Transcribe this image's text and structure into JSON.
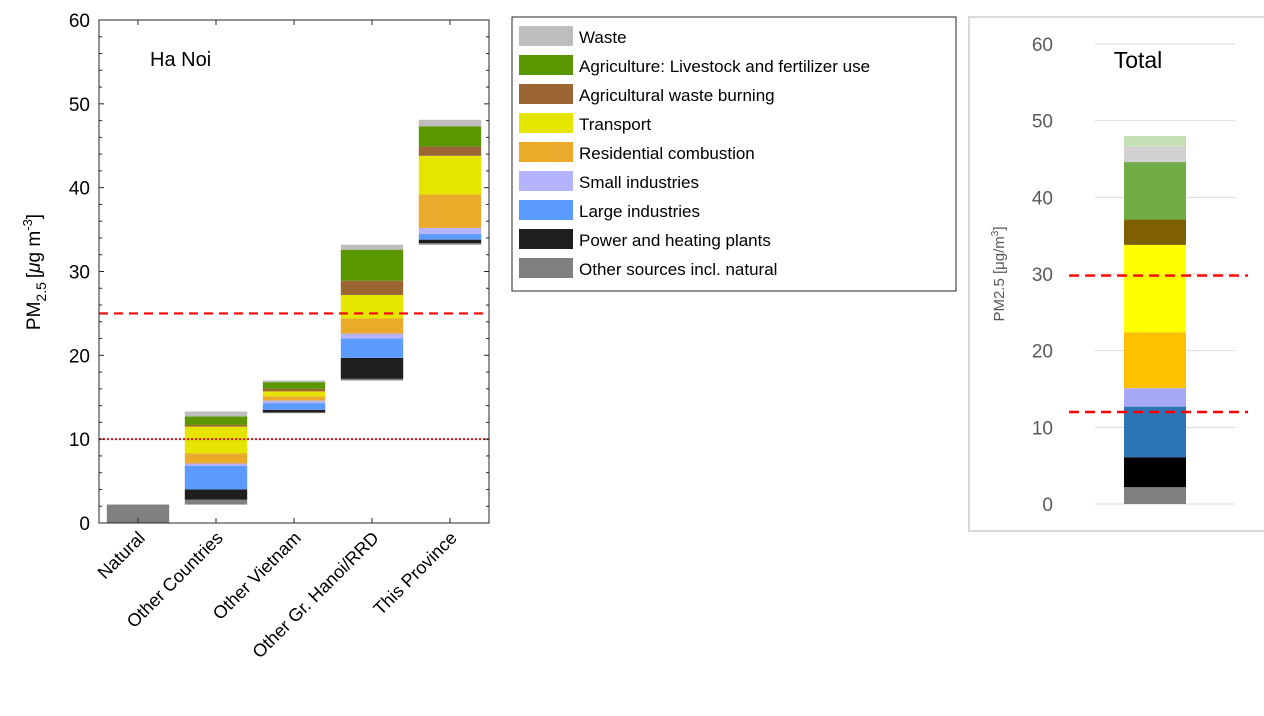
{
  "colors": {
    "Waste": "#bdbdbd",
    "Agriculture: Livestock and fertilizer use": "#5a9600",
    "Agricultural waste burning": "#9c6534",
    "Transport": "#e5e500",
    "Residential combustion": "#eaaa2a",
    "Small industries": "#b3b3ff",
    "Large industries": "#5b9bff",
    "Power and heating plants": "#1e1e1e",
    "Other sources incl. natural": "#808080"
  },
  "colors_right": {
    "Other sources incl. natural": "#7f7f7f",
    "Power and heating plants": "#000000",
    "Large industries": "#2e75b6",
    "Small industries": "#a7a7f7",
    "Residential combustion": "#ffc000",
    "Transport": "#ffff00",
    "Agricultural waste burning": "#7f6000",
    "Agriculture: Livestock and fertilizer use": "#70ad47",
    "Waste": "#d0d0d0",
    "Other": "#c5e0b4"
  },
  "chart_data": [
    {
      "type": "bar",
      "subtype": "waterfall-stacked",
      "annotation": "Ha Noi",
      "ylabel": "PM",
      "ylabel_sub": "2.5",
      "ylabel_unit_prefix": "[",
      "ylabel_mu": "μ",
      "ylabel_unit_mid": "g m",
      "ylabel_sup": "-3",
      "ylabel_unit_suffix": "]",
      "ylim": [
        0,
        60
      ],
      "yticks": [
        0,
        10,
        20,
        30,
        40,
        50,
        60
      ],
      "categories": [
        "Natural",
        "Other Countries",
        "Other Vietnam",
        "Other Gr. Hanoi/RRD",
        "This Province"
      ],
      "bars": [
        {
          "base": 0,
          "segments": [
            {
              "source": "Other sources incl. natural",
              "value": 2.2
            }
          ]
        },
        {
          "base": 2.2,
          "segments": [
            {
              "source": "Other sources incl. natural",
              "value": 0.6
            },
            {
              "source": "Power and heating plants",
              "value": 1.2
            },
            {
              "source": "Large industries",
              "value": 2.8
            },
            {
              "source": "Small industries",
              "value": 0.3
            },
            {
              "source": "Residential combustion",
              "value": 1.2
            },
            {
              "source": "Transport",
              "value": 3.2
            },
            {
              "source": "Agricultural waste burning",
              "value": 0.2
            },
            {
              "source": "Agriculture: Livestock and fertilizer use",
              "value": 1.0
            },
            {
              "source": "Waste",
              "value": 0.6
            }
          ]
        },
        {
          "base": 13.1,
          "segments": [
            {
              "source": "Other sources incl. natural",
              "value": 0.1
            },
            {
              "source": "Power and heating plants",
              "value": 0.3
            },
            {
              "source": "Large industries",
              "value": 0.8
            },
            {
              "source": "Small industries",
              "value": 0.3
            },
            {
              "source": "Residential combustion",
              "value": 0.5
            },
            {
              "source": "Transport",
              "value": 0.6
            },
            {
              "source": "Agricultural waste burning",
              "value": 0.3
            },
            {
              "source": "Agriculture: Livestock and fertilizer use",
              "value": 0.8
            },
            {
              "source": "Waste",
              "value": 0.2
            }
          ]
        },
        {
          "base": 17.0,
          "segments": [
            {
              "source": "Other sources incl. natural",
              "value": 0.2
            },
            {
              "source": "Power and heating plants",
              "value": 2.5
            },
            {
              "source": "Large industries",
              "value": 2.3
            },
            {
              "source": "Small industries",
              "value": 0.6
            },
            {
              "source": "Residential combustion",
              "value": 1.8
            },
            {
              "source": "Transport",
              "value": 2.8
            },
            {
              "source": "Agricultural waste burning",
              "value": 1.7
            },
            {
              "source": "Agriculture: Livestock and fertilizer use",
              "value": 3.7
            },
            {
              "source": "Waste",
              "value": 0.6
            }
          ]
        },
        {
          "base": 33.2,
          "segments": [
            {
              "source": "Other sources incl. natural",
              "value": 0.2
            },
            {
              "source": "Power and heating plants",
              "value": 0.4
            },
            {
              "source": "Large industries",
              "value": 0.7
            },
            {
              "source": "Small industries",
              "value": 0.7
            },
            {
              "source": "Residential combustion",
              "value": 4.0
            },
            {
              "source": "Transport",
              "value": 4.6
            },
            {
              "source": "Agricultural waste burning",
              "value": 1.1
            },
            {
              "source": "Agriculture: Livestock and fertilizer use",
              "value": 2.4
            },
            {
              "source": "Waste",
              "value": 0.8
            }
          ]
        }
      ],
      "reference_lines": [
        {
          "value": 25,
          "style": "dashed",
          "color": "#ff0000"
        },
        {
          "value": 10,
          "style": "dotted",
          "color": "#ff0000"
        }
      ],
      "legend": {
        "placement": "right",
        "items": [
          "Waste",
          "Agriculture: Livestock and fertilizer use",
          "Agricultural waste burning",
          "Transport",
          "Residential combustion",
          "Small industries",
          "Large industries",
          "Power and heating plants",
          "Other sources incl. natural"
        ]
      }
    },
    {
      "type": "bar",
      "subtype": "stacked",
      "title": "Total",
      "ylabel": "PM2.5 [μg/m",
      "ylabel_sup": "3",
      "ylabel_suffix": "]",
      "ylim": [
        0,
        60
      ],
      "yticks": [
        0,
        10,
        20,
        30,
        40,
        50,
        60
      ],
      "grid": true,
      "segments": [
        {
          "source": "Other sources incl. natural",
          "value": 2.2
        },
        {
          "source": "Power and heating plants",
          "value": 3.9
        },
        {
          "source": "Large industries",
          "value": 6.6
        },
        {
          "source": "Small industries",
          "value": 2.4
        },
        {
          "source": "Residential combustion",
          "value": 7.3
        },
        {
          "source": "Transport",
          "value": 11.4
        },
        {
          "source": "Agricultural waste burning",
          "value": 3.3
        },
        {
          "source": "Agriculture: Livestock and fertilizer use",
          "value": 7.5
        },
        {
          "source": "Waste",
          "value": 2.0
        },
        {
          "source": "Other",
          "value": 1.4
        }
      ],
      "reference_lines": [
        {
          "value": 29.8,
          "style": "dashed",
          "color": "#ff0000"
        },
        {
          "value": 12.0,
          "style": "dashed",
          "color": "#ff0000"
        }
      ]
    }
  ]
}
